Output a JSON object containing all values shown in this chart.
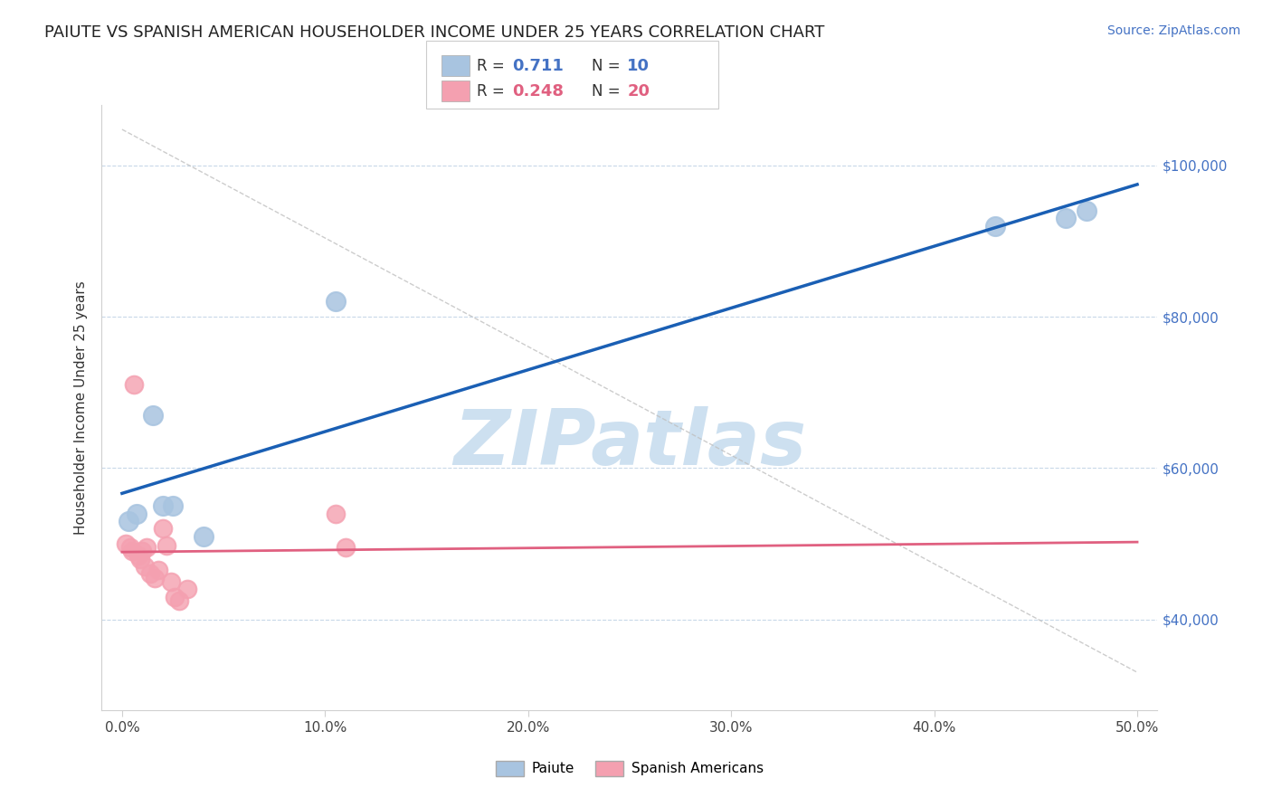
{
  "title": "PAIUTE VS SPANISH AMERICAN HOUSEHOLDER INCOME UNDER 25 YEARS CORRELATION CHART",
  "source_text": "Source: ZipAtlas.com",
  "ylabel": "Householder Income Under 25 years",
  "xlabel_ticks": [
    "0.0%",
    "10.0%",
    "20.0%",
    "30.0%",
    "40.0%",
    "50.0%"
  ],
  "xlabel_vals": [
    0.0,
    10.0,
    20.0,
    30.0,
    40.0,
    50.0
  ],
  "ylabel_ticks": [
    "$40,000",
    "$60,000",
    "$80,000",
    "$100,000"
  ],
  "ylabel_vals": [
    40000,
    60000,
    80000,
    100000
  ],
  "xlim": [
    -1.0,
    51.0
  ],
  "ylim": [
    28000,
    108000
  ],
  "paiute_x": [
    0.3,
    0.7,
    1.5,
    2.0,
    2.5,
    4.0,
    10.5,
    43.0,
    46.5,
    47.5
  ],
  "paiute_y": [
    53000,
    54000,
    67000,
    55000,
    55000,
    51000,
    82000,
    92000,
    93000,
    94000
  ],
  "spanish_x": [
    0.2,
    0.4,
    0.5,
    0.6,
    0.8,
    0.9,
    1.0,
    1.1,
    1.2,
    1.4,
    1.6,
    1.8,
    2.0,
    2.2,
    2.4,
    2.6,
    2.8,
    3.2,
    10.5,
    11.0
  ],
  "spanish_y": [
    50000,
    49500,
    49000,
    71000,
    48500,
    48000,
    49000,
    47000,
    49500,
    46000,
    45500,
    46500,
    52000,
    49800,
    45000,
    43000,
    42500,
    44000,
    54000,
    49500
  ],
  "paiute_color": "#a8c4e0",
  "spanish_color": "#f4a0b0",
  "paiute_line_color": "#1a5fb4",
  "spanish_line_color": "#e06080",
  "diag_line_color": "#cccccc",
  "legend_R_paiute": "0.711",
  "legend_N_paiute": "10",
  "legend_R_spanish": "0.248",
  "legend_N_spanish": "20",
  "legend_paiute_label": "Paiute",
  "legend_spanish_label": "Spanish Americans",
  "watermark": "ZIPatlas",
  "watermark_color": "#cde0f0",
  "background_color": "#ffffff",
  "grid_color": "#c8d8e8",
  "title_fontsize": 13,
  "source_fontsize": 10
}
